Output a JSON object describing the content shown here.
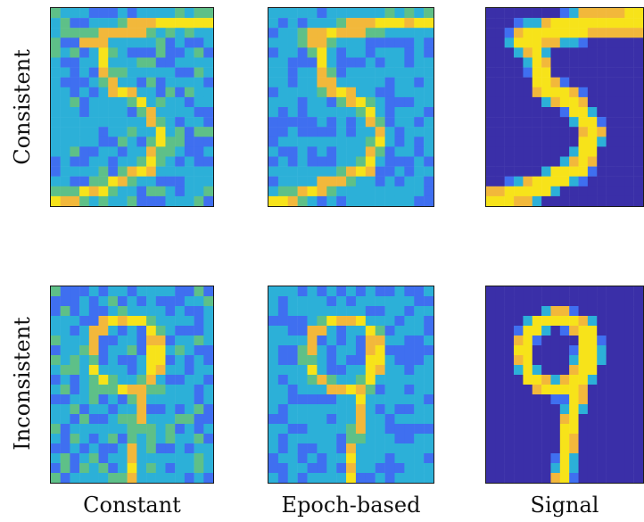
{
  "rows": [
    {
      "label": "Consistent",
      "digit": "5"
    },
    {
      "label": "Inconsistent",
      "digit": "9"
    }
  ],
  "columns": [
    {
      "label": "Constant",
      "noise": 0.55
    },
    {
      "label": "Epoch-based",
      "noise": 0.4
    },
    {
      "label": "Signal",
      "noise": 0.0
    }
  ],
  "colors": {
    "dark": "#3a2fa8",
    "blue": "#3f6ff0",
    "cyan": "#2cb0d8",
    "green": "#5ec088",
    "orange": "#f2b83b",
    "yellow": "#f7e31a",
    "frame": "#1a1a1a"
  }
}
